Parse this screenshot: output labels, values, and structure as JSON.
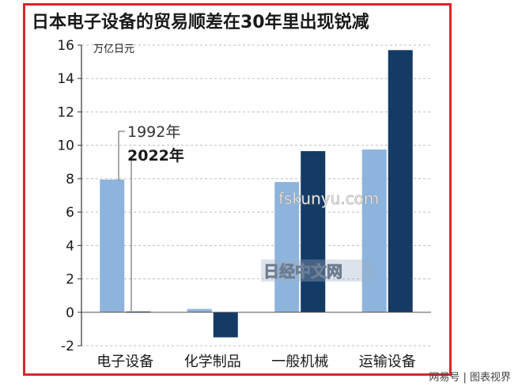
{
  "title": "日本电子设备的贸易顺差在30年里出现锐减",
  "watermarks": [
    "fskunyu.com",
    "日经中文网"
  ],
  "credit": "网易号 | 图表视界",
  "chart_data": {
    "type": "bar",
    "title": "日本电子设备的贸易顺差在30年里出现锐减",
    "unit": "万亿日元",
    "categories": [
      "电子设备",
      "化学制品",
      "一般机械",
      "运输设备"
    ],
    "series": [
      {
        "name": "1992年",
        "values": [
          7.95,
          0.2,
          7.8,
          9.75
        ],
        "color": "#8db4dd"
      },
      {
        "name": "2022年",
        "values": [
          0.05,
          -1.5,
          9.65,
          15.7
        ],
        "color": "#143a66"
      }
    ],
    "yticks": [
      -2,
      0,
      2,
      4,
      6,
      8,
      10,
      12,
      14,
      16
    ],
    "ylim": [
      -2,
      16
    ],
    "grid": true,
    "legend": "inside-left"
  }
}
